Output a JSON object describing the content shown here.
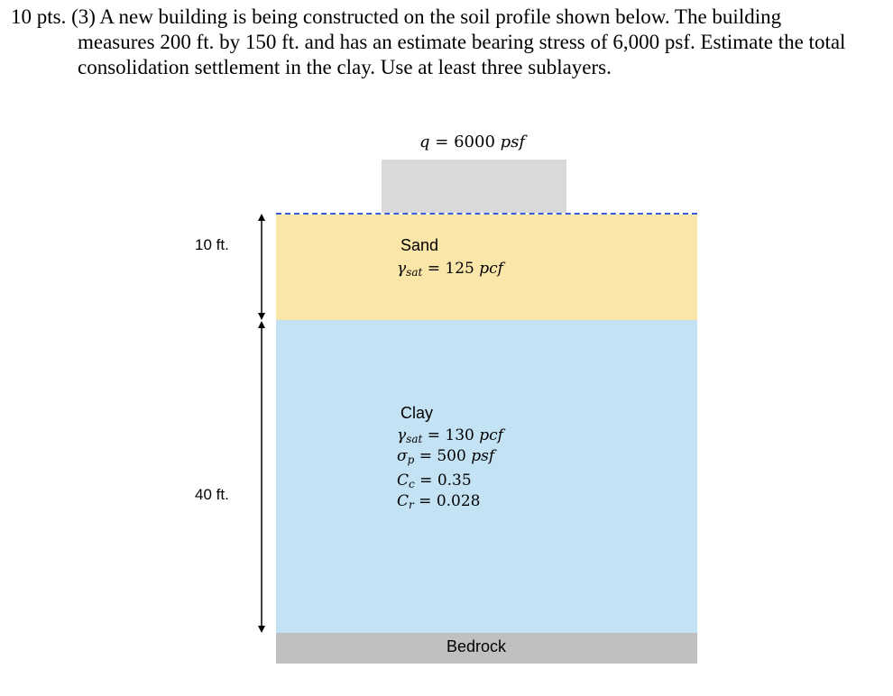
{
  "problem": {
    "points": "10 pts.",
    "text_line1": "(3) A new building is being constructed on the soil profile shown below. The building",
    "text_rest": "measures 200 ft. by 150 ft. and has an estimate bearing stress of 6,000 psf. Estimate the total consolidation settlement in the clay. Use at least three sublayers."
  },
  "diagram": {
    "load": {
      "symbol": "q",
      "eq": "=",
      "value": "6000",
      "unit": "psf"
    },
    "sand": {
      "name": "Sand",
      "gamma_symbol": "γ",
      "gamma_sub": "sat",
      "gamma_eq": "=",
      "gamma_value": "125",
      "gamma_unit": "pcf",
      "thickness": "10 ft."
    },
    "clay": {
      "name": "Clay",
      "gamma_symbol": "γ",
      "gamma_sub": "sat",
      "gamma_eq": "=",
      "gamma_value": "130",
      "gamma_unit": "pcf",
      "sigma_symbol": "σ",
      "sigma_sub": "p",
      "sigma_eq": "=",
      "sigma_value": "500",
      "sigma_unit": "psf",
      "cc_symbol": "C",
      "cc_sub": "c",
      "cc_eq": "=",
      "cc_value": "0.35",
      "cr_symbol": "C",
      "cr_sub": "r",
      "cr_eq": "=",
      "cr_value": "0.028",
      "thickness": "40 ft."
    },
    "bedrock": {
      "name": "Bedrock"
    },
    "colors": {
      "sand": "#fbe6a9",
      "clay": "#c3e3f5",
      "bedrock": "#c0c0c0",
      "footing": "#d9d9d9",
      "water_table": "#3b5bdb"
    }
  }
}
